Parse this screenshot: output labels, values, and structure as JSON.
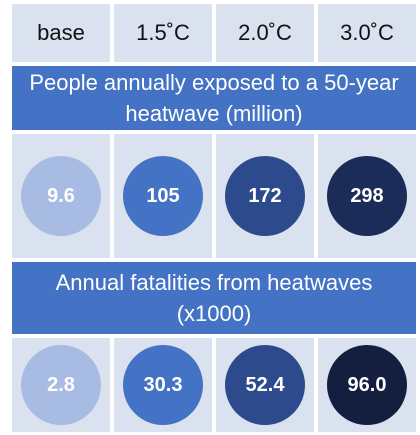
{
  "columns": [
    "base",
    "1.5˚C",
    "2.0˚C",
    "3.0˚C"
  ],
  "sections": [
    {
      "title": "People annually exposed to a 50-year heatwave (million)",
      "values": [
        "9.6",
        "105",
        "172",
        "298"
      ]
    },
    {
      "title": "Annual fatalities from heatwaves (x1000)",
      "values": [
        "2.8",
        "30.3",
        "52.4",
        "96.0"
      ]
    }
  ]
}
